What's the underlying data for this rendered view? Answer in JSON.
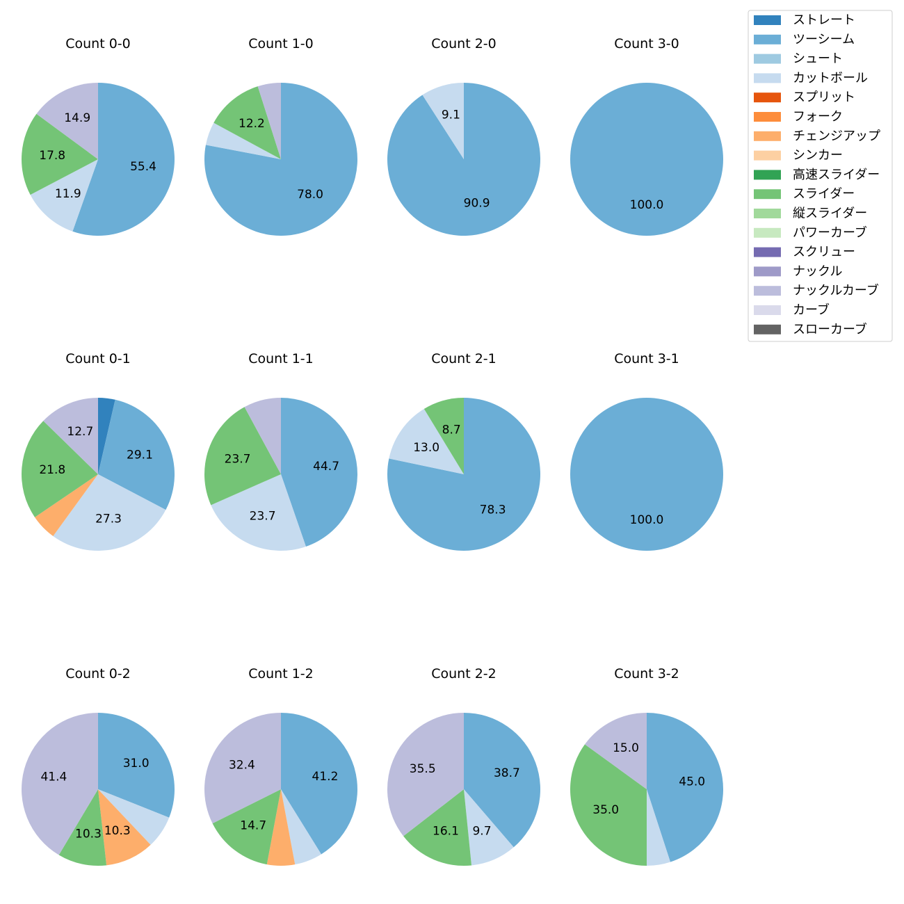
{
  "chart_data": {
    "type": "pie",
    "pitch_types": [
      {
        "name": "ストレート",
        "color": "#3182bd"
      },
      {
        "name": "ツーシーム",
        "color": "#6baed6"
      },
      {
        "name": "シュート",
        "color": "#9ecae1"
      },
      {
        "name": "カットボール",
        "color": "#c6dbef"
      },
      {
        "name": "スプリット",
        "color": "#e6550d"
      },
      {
        "name": "フォーク",
        "color": "#fd8d3c"
      },
      {
        "name": "チェンジアップ",
        "color": "#fdae6b"
      },
      {
        "name": "シンカー",
        "color": "#fdd0a2"
      },
      {
        "name": "高速スライダー",
        "color": "#31a354"
      },
      {
        "name": "スライダー",
        "color": "#74c476"
      },
      {
        "name": "縦スライダー",
        "color": "#a1d99b"
      },
      {
        "name": "パワーカーブ",
        "color": "#c7e9c0"
      },
      {
        "name": "スクリュー",
        "color": "#756bb1"
      },
      {
        "name": "ナックル",
        "color": "#9e9ac8"
      },
      {
        "name": "ナックルカーブ",
        "color": "#bcbddc"
      },
      {
        "name": "カーブ",
        "color": "#dadaeb"
      },
      {
        "name": "スローカーブ",
        "color": "#636363"
      }
    ],
    "charts": [
      {
        "title": "Count 0-0",
        "slices": [
          {
            "type": "ツーシーム",
            "value": 55.4,
            "label": "55.4"
          },
          {
            "type": "カットボール",
            "value": 11.9,
            "label": "11.9"
          },
          {
            "type": "スライダー",
            "value": 17.8,
            "label": "17.8"
          },
          {
            "type": "ナックルカーブ",
            "value": 14.9,
            "label": "14.9"
          }
        ]
      },
      {
        "title": "Count 1-0",
        "slices": [
          {
            "type": "ツーシーム",
            "value": 78.0,
            "label": "78.0"
          },
          {
            "type": "カットボール",
            "value": 4.9,
            "label": ""
          },
          {
            "type": "スライダー",
            "value": 12.2,
            "label": "12.2"
          },
          {
            "type": "ナックルカーブ",
            "value": 4.9,
            "label": ""
          }
        ]
      },
      {
        "title": "Count 2-0",
        "slices": [
          {
            "type": "ツーシーム",
            "value": 90.9,
            "label": "90.9"
          },
          {
            "type": "カットボール",
            "value": 9.1,
            "label": "9.1"
          }
        ]
      },
      {
        "title": "Count 3-0",
        "slices": [
          {
            "type": "ツーシーム",
            "value": 100.0,
            "label": "100.0"
          }
        ]
      },
      {
        "title": "Count 0-1",
        "slices": [
          {
            "type": "ストレート",
            "value": 3.6,
            "label": ""
          },
          {
            "type": "ツーシーム",
            "value": 29.1,
            "label": "29.1"
          },
          {
            "type": "カットボール",
            "value": 27.3,
            "label": "27.3"
          },
          {
            "type": "チェンジアップ",
            "value": 5.5,
            "label": ""
          },
          {
            "type": "スライダー",
            "value": 21.8,
            "label": "21.8"
          },
          {
            "type": "ナックルカーブ",
            "value": 12.7,
            "label": "12.7"
          }
        ]
      },
      {
        "title": "Count 1-1",
        "slices": [
          {
            "type": "ツーシーム",
            "value": 44.7,
            "label": "44.7"
          },
          {
            "type": "カットボール",
            "value": 23.7,
            "label": "23.7"
          },
          {
            "type": "スライダー",
            "value": 23.7,
            "label": "23.7"
          },
          {
            "type": "ナックルカーブ",
            "value": 7.9,
            "label": ""
          }
        ]
      },
      {
        "title": "Count 2-1",
        "slices": [
          {
            "type": "ツーシーム",
            "value": 78.3,
            "label": "78.3"
          },
          {
            "type": "カットボール",
            "value": 13.0,
            "label": "13.0"
          },
          {
            "type": "スライダー",
            "value": 8.7,
            "label": "8.7"
          }
        ]
      },
      {
        "title": "Count 3-1",
        "slices": [
          {
            "type": "ツーシーム",
            "value": 100.0,
            "label": "100.0"
          }
        ]
      },
      {
        "title": "Count 0-2",
        "slices": [
          {
            "type": "ツーシーム",
            "value": 31.0,
            "label": "31.0"
          },
          {
            "type": "カットボール",
            "value": 6.9,
            "label": ""
          },
          {
            "type": "チェンジアップ",
            "value": 10.3,
            "label": "10.3"
          },
          {
            "type": "スライダー",
            "value": 10.3,
            "label": "10.3"
          },
          {
            "type": "ナックルカーブ",
            "value": 41.4,
            "label": "41.4"
          }
        ]
      },
      {
        "title": "Count 1-2",
        "slices": [
          {
            "type": "ツーシーム",
            "value": 41.2,
            "label": "41.2"
          },
          {
            "type": "カットボール",
            "value": 5.9,
            "label": ""
          },
          {
            "type": "チェンジアップ",
            "value": 5.9,
            "label": ""
          },
          {
            "type": "スライダー",
            "value": 14.7,
            "label": "14.7"
          },
          {
            "type": "ナックルカーブ",
            "value": 32.4,
            "label": "32.4"
          }
        ]
      },
      {
        "title": "Count 2-2",
        "slices": [
          {
            "type": "ツーシーム",
            "value": 38.7,
            "label": "38.7"
          },
          {
            "type": "カットボール",
            "value": 9.7,
            "label": "9.7"
          },
          {
            "type": "スライダー",
            "value": 16.1,
            "label": "16.1"
          },
          {
            "type": "ナックルカーブ",
            "value": 35.5,
            "label": "35.5"
          }
        ]
      },
      {
        "title": "Count 3-2",
        "slices": [
          {
            "type": "ツーシーム",
            "value": 45.0,
            "label": "45.0"
          },
          {
            "type": "カットボール",
            "value": 5.0,
            "label": ""
          },
          {
            "type": "スライダー",
            "value": 35.0,
            "label": "35.0"
          },
          {
            "type": "ナックルカーブ",
            "value": 15.0,
            "label": "15.0"
          }
        ]
      }
    ]
  }
}
